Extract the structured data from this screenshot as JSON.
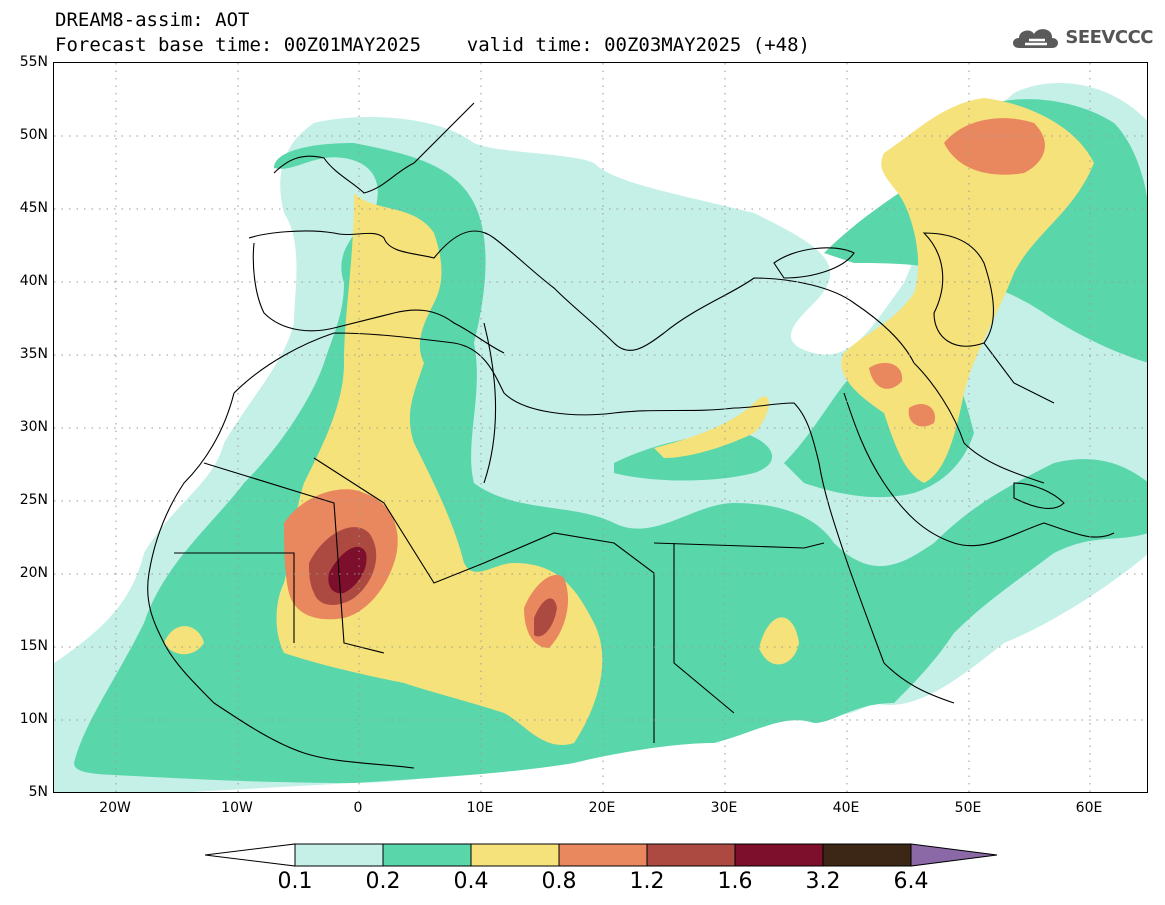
{
  "title": {
    "line1": "DREAM8-assim: AOT",
    "line2": "Forecast base time: 00Z01MAY2025    valid time: 00Z03MAY2025 (+48)"
  },
  "logo": {
    "text": "SEEVCCC",
    "icon": "cloud-icon"
  },
  "map": {
    "lat_labels": [
      "55N",
      "50N",
      "45N",
      "40N",
      "35N",
      "30N",
      "25N",
      "20N",
      "15N",
      "10N",
      "5N"
    ],
    "lon_labels": [
      "20W",
      "10W",
      "0",
      "10E",
      "20E",
      "30E",
      "40E",
      "50E",
      "60E"
    ],
    "colors": {
      "ocean": "#ffffff",
      "c01": "#c4f0e8",
      "c02": "#5ad6ab",
      "c04": "#f6e27a",
      "c08": "#e9885f",
      "c12": "#ac4a42",
      "c16": "#7d0e2c",
      "c32": "#3c2616",
      "c64": "#8a69a6",
      "coast": "#000000",
      "grid": "#9a9a9a"
    }
  },
  "colorbar": {
    "labels": [
      "0.1",
      "0.2",
      "0.4",
      "0.8",
      "1.2",
      "1.6",
      "3.2",
      "6.4"
    ],
    "colors": [
      "#ffffff",
      "#c4f0e8",
      "#5ad6ab",
      "#f6e27a",
      "#e9885f",
      "#ac4a42",
      "#7d0e2c",
      "#3c2616",
      "#8a69a6"
    ]
  }
}
